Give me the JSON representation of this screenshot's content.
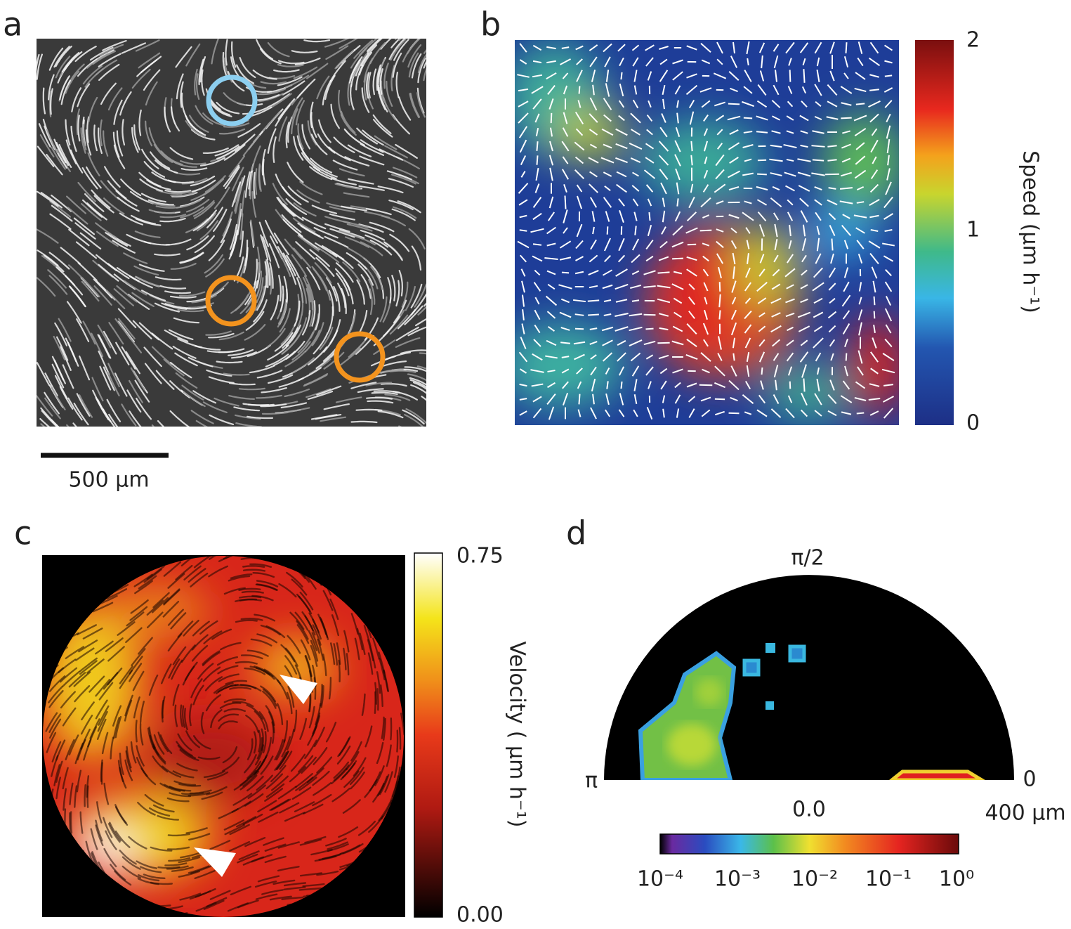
{
  "panels": [
    {
      "label": "a",
      "scale_bar": "500 µm"
    },
    {
      "label": "b",
      "colorbar": {
        "title": "Speed (µm h⁻¹)",
        "ticks": [
          "2",
          "1",
          "0"
        ]
      }
    },
    {
      "label": "c",
      "colorbar": {
        "title": "Velocity ( µm h⁻¹)",
        "ticks": [
          "0.75",
          "0.00"
        ]
      }
    },
    {
      "label": "d",
      "angle_labels": [
        "π/2",
        "π",
        "0"
      ],
      "radius_labels": [
        "0.0",
        "400 µm"
      ],
      "colorbar": {
        "ticks": [
          "10⁻⁴",
          "10⁻³",
          "10⁻²",
          "10⁻¹",
          "10⁰"
        ]
      }
    }
  ]
}
